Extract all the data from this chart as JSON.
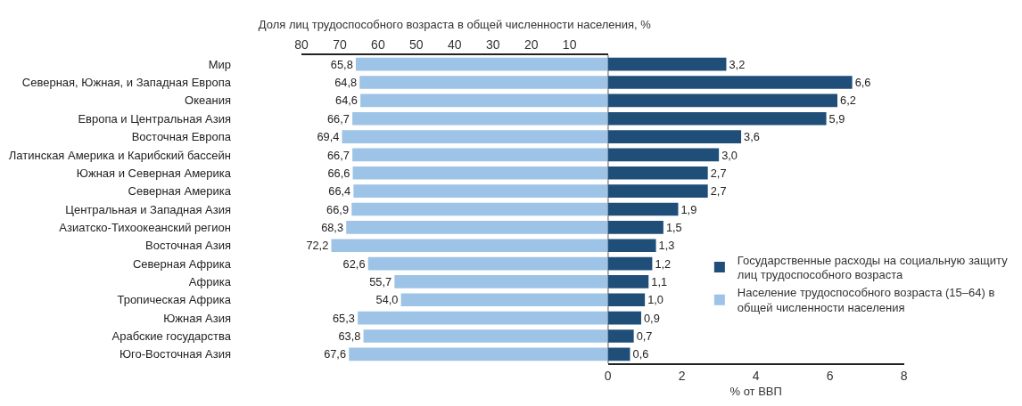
{
  "chart_data": [
    {
      "type": "bar",
      "orientation": "horizontal",
      "xlabel": "Доля лиц трудоспособного возраста в общей численности населения, %",
      "categories": [
        "Мир",
        "Северная, Южная, и Западная Европа",
        "Океания",
        "Европа и Центральная Азия",
        "Восточная Европа",
        "Латинская Америка и Карибский бассейн",
        "Южная и Северная Америка",
        "Северная Америка",
        "Центральная и Западная Азия",
        "Азиатско-Тихоокеанский регион",
        "Восточная Азия",
        "Северная Африка",
        "Африка",
        "Тропическая Африка",
        "Южная Азия",
        "Арабские государства",
        "Юго-Восточная Азия"
      ],
      "series": [
        {
          "name": "Население трудоспособного возраста (15–64) в общей численности населения",
          "color": "#9dc3e6",
          "values": [
            65.8,
            64.8,
            64.6,
            66.7,
            69.4,
            66.7,
            66.6,
            66.4,
            66.9,
            68.3,
            72.2,
            62.6,
            55.7,
            54.0,
            65.3,
            63.8,
            67.6
          ],
          "value_labels": [
            "65,8",
            "64,8",
            "64,6",
            "66,7",
            "69,4",
            "66,7",
            "66,6",
            "66,4",
            "66,9",
            "68,3",
            "72,2",
            "62,6",
            "55,7",
            "54,0",
            "65,3",
            "63,8",
            "67,6"
          ]
        }
      ],
      "xlim": [
        80,
        0
      ],
      "xticks": [
        80,
        70,
        60,
        50,
        40,
        30,
        20,
        10
      ],
      "tick_labels": "xy",
      "legend": "bottom right"
    },
    {
      "type": "bar",
      "orientation": "horizontal",
      "xlabel": "% от ВВП",
      "categories": [
        "Мир",
        "Северная, Южная, и Западная Европа",
        "Океания",
        "Европа и Центральная Азия",
        "Восточная Европа",
        "Латинская Америка и Карибский бассейн",
        "Южная и Северная Америка",
        "Северная Америка",
        "Центральная и Западная Азия",
        "Азиатско-Тихоокеанский регион",
        "Восточная Азия",
        "Северная Африка",
        "Африка",
        "Тропическая Африка",
        "Южная Азия",
        "Арабские государства",
        "Юго-Восточная Азия"
      ],
      "series": [
        {
          "name": "Государственные расходы на социальную защиту лиц трудоспособного возраста",
          "color": "#1f4e79",
          "values": [
            3.2,
            6.6,
            6.2,
            5.9,
            3.6,
            3.0,
            2.7,
            2.7,
            1.9,
            1.5,
            1.3,
            1.2,
            1.1,
            1.0,
            0.9,
            0.7,
            0.6
          ],
          "value_labels": [
            "3,2",
            "6,6",
            "6,2",
            "5,9",
            "3,6",
            "3,0",
            "2,7",
            "2,7",
            "1,9",
            "1,5",
            "1,3",
            "1,2",
            "1,1",
            "1,0",
            "0,9",
            "0,7",
            "0,6"
          ]
        }
      ],
      "xlim": [
        0,
        8
      ],
      "xticks": [
        0,
        2,
        4,
        6,
        8
      ],
      "tick_labels": "x",
      "legend": "bottom right"
    }
  ]
}
